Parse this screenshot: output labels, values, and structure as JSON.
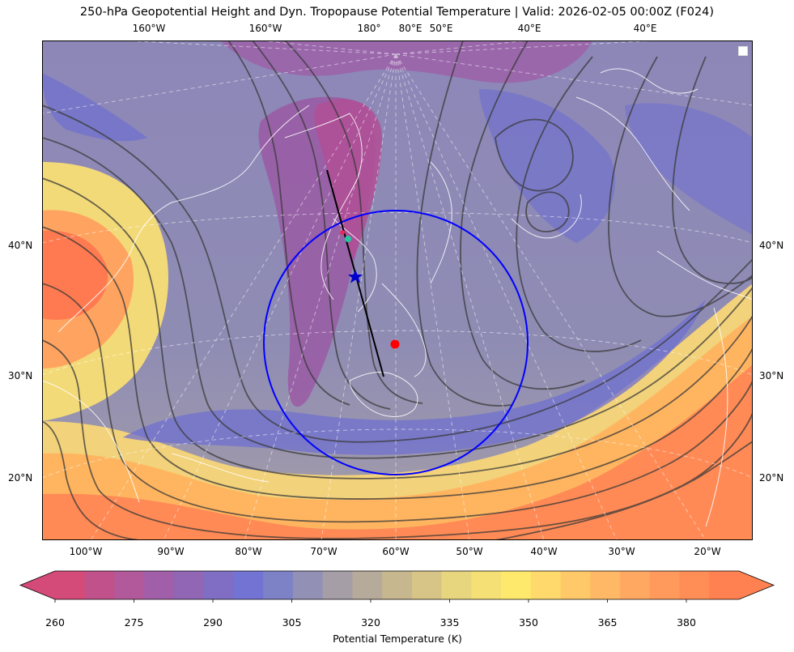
{
  "title": "250-hPa Geopotential Height and Dyn. Tropopause Potential Temperature   |  Valid: 2026-02-05 00:00Z (F024)",
  "top_ticks": [
    "160°W",
    "160°W",
    "180°",
    "80°E",
    "50°E",
    "40°E",
    "40°E"
  ],
  "bottom_ticks": [
    "100°W",
    "90°W",
    "80°W",
    "70°W",
    "60°W",
    "50°W",
    "40°W",
    "30°W",
    "20°W"
  ],
  "left_ticks": [
    "40°N",
    "30°N",
    "20°N"
  ],
  "right_ticks": [
    "40°N",
    "30°N",
    "20°N"
  ],
  "colorbar": {
    "label": "Potential Temperature (K)",
    "ticks": [
      "260",
      "275",
      "290",
      "305",
      "320",
      "335",
      "350",
      "365",
      "380"
    ],
    "min": 260,
    "max": 390,
    "step": 5,
    "colors": [
      "#d44a78",
      "#c1518a",
      "#b1599a",
      "#a15fa9",
      "#9066b5",
      "#7f6ec4",
      "#7273d2",
      "#7d82c7",
      "#9390b6",
      "#a59ea7",
      "#b6aa9b",
      "#c6b78f",
      "#d6c587",
      "#e8d67f",
      "#f4e075",
      "#ffe96d",
      "#ffd96b",
      "#ffc868",
      "#ffb866",
      "#ffa862",
      "#ff9a5c",
      "#ff8e56",
      "#ff8050"
    ]
  },
  "annotations": {
    "circle_color": "#0000ff",
    "red_point_color": "#ff0000",
    "star_color": "#0000cc",
    "teal_point_color": "#20c8a0",
    "track_color": "#000000"
  }
}
